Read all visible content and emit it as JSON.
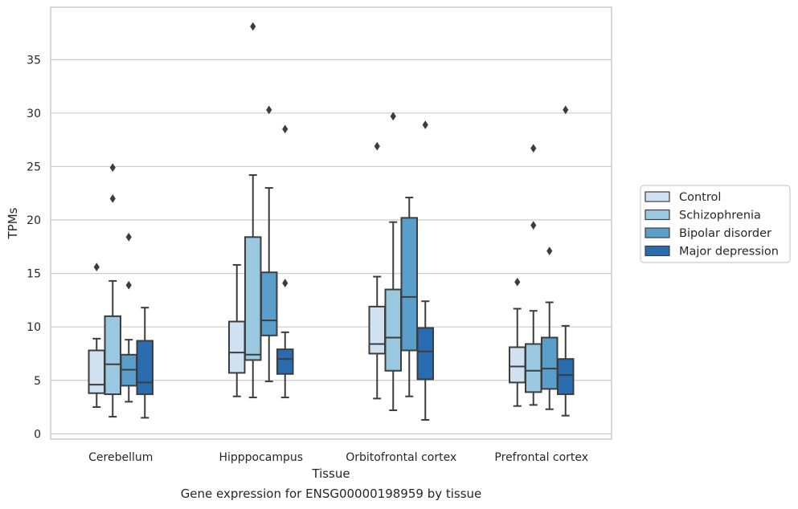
{
  "caption": "Gene expression for ENSG00000198959 by tissue",
  "chart_data": {
    "type": "box",
    "xlabel": "Tissue",
    "ylabel": "TPMs",
    "ylim": [
      -0.5,
      39.9
    ],
    "yticks": [
      0,
      5,
      10,
      15,
      20,
      25,
      30,
      35
    ],
    "grid": true,
    "legend_position": "right",
    "categories": [
      "Cerebellum",
      "Hipppocampus",
      "Orbitofrontal cortex",
      "Prefrontal cortex"
    ],
    "series": [
      {
        "name": "Control",
        "color": "#d0e1f2",
        "boxes": [
          {
            "whislo": 2.5,
            "q1": 3.8,
            "med": 4.6,
            "q3": 7.8,
            "whishi": 8.9,
            "fliers": [
              15.6
            ]
          },
          {
            "whislo": 3.5,
            "q1": 5.7,
            "med": 7.6,
            "q3": 10.5,
            "whishi": 15.8,
            "fliers": []
          },
          {
            "whislo": 3.3,
            "q1": 7.5,
            "med": 8.4,
            "q3": 11.9,
            "whishi": 14.7,
            "fliers": [
              26.9
            ]
          },
          {
            "whislo": 2.6,
            "q1": 4.8,
            "med": 6.3,
            "q3": 8.1,
            "whishi": 11.7,
            "fliers": [
              14.2
            ]
          }
        ]
      },
      {
        "name": "Schizophrenia",
        "color": "#9ac8e0",
        "boxes": [
          {
            "whislo": 1.6,
            "q1": 3.7,
            "med": 6.5,
            "q3": 11.0,
            "whishi": 14.3,
            "fliers": [
              22.0,
              24.9
            ]
          },
          {
            "whislo": 3.4,
            "q1": 6.9,
            "med": 7.4,
            "q3": 18.4,
            "whishi": 24.2,
            "fliers": [
              38.1
            ]
          },
          {
            "whislo": 2.2,
            "q1": 5.9,
            "med": 9.0,
            "q3": 13.5,
            "whishi": 19.8,
            "fliers": [
              29.7
            ]
          },
          {
            "whislo": 2.7,
            "q1": 3.9,
            "med": 5.9,
            "q3": 8.4,
            "whishi": 11.5,
            "fliers": [
              19.5,
              26.7
            ]
          }
        ]
      },
      {
        "name": "Bipolar disorder",
        "color": "#5a9fcc",
        "boxes": [
          {
            "whislo": 3.0,
            "q1": 4.5,
            "med": 6.0,
            "q3": 7.4,
            "whishi": 8.8,
            "fliers": [
              13.9,
              18.4
            ]
          },
          {
            "whislo": 4.9,
            "q1": 9.2,
            "med": 10.6,
            "q3": 15.1,
            "whishi": 23.0,
            "fliers": [
              30.3
            ]
          },
          {
            "whislo": 3.5,
            "q1": 7.8,
            "med": 12.8,
            "q3": 20.2,
            "whishi": 22.1,
            "fliers": []
          },
          {
            "whislo": 2.3,
            "q1": 4.2,
            "med": 6.1,
            "q3": 9.0,
            "whishi": 12.3,
            "fliers": [
              17.1
            ]
          }
        ]
      },
      {
        "name": "Major depression",
        "color": "#2a6cb0",
        "boxes": [
          {
            "whislo": 1.5,
            "q1": 3.7,
            "med": 4.8,
            "q3": 8.7,
            "whishi": 11.8,
            "fliers": []
          },
          {
            "whislo": 3.4,
            "q1": 5.6,
            "med": 7.0,
            "q3": 7.9,
            "whishi": 9.5,
            "fliers": [
              14.1,
              28.5
            ]
          },
          {
            "whislo": 1.3,
            "q1": 5.1,
            "med": 7.7,
            "q3": 9.9,
            "whishi": 12.4,
            "fliers": [
              28.9
            ]
          },
          {
            "whislo": 1.7,
            "q1": 3.7,
            "med": 5.5,
            "q3": 7.0,
            "whishi": 10.1,
            "fliers": [
              30.3
            ]
          }
        ]
      }
    ]
  }
}
